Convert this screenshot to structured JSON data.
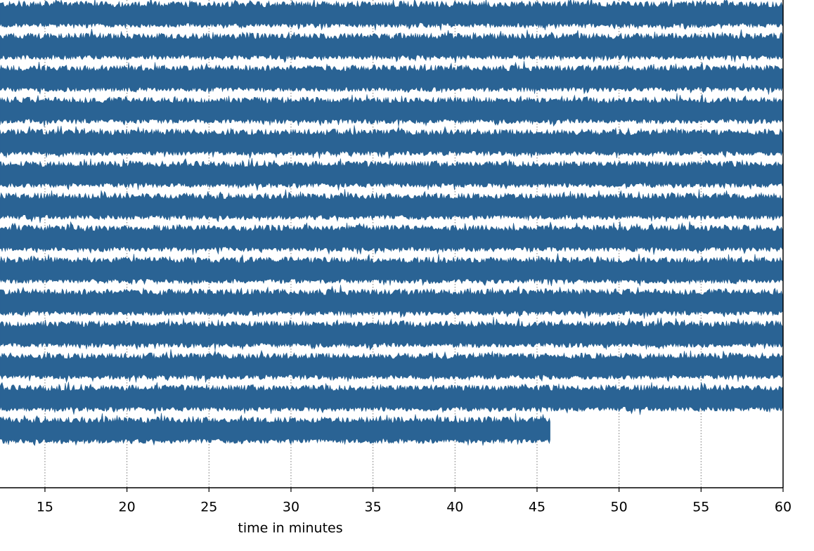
{
  "chart_data": {
    "type": "line",
    "xlabel": "time in minutes",
    "xlim": [
      12.26,
      60
    ],
    "xticks": [
      15,
      20,
      25,
      30,
      35,
      40,
      45,
      50,
      55,
      60
    ],
    "grid": true,
    "series": [
      {
        "color": "#2a6394",
        "end": 60
      },
      {
        "color": "#2a6394",
        "end": 60
      },
      {
        "color": "#2a6394",
        "end": 60
      },
      {
        "color": "#2a6394",
        "end": 60
      },
      {
        "color": "#2a6394",
        "end": 60
      },
      {
        "color": "#2a6394",
        "end": 60
      },
      {
        "color": "#2a6394",
        "end": 60
      },
      {
        "color": "#2a6394",
        "end": 60
      },
      {
        "color": "#2a6394",
        "end": 60
      },
      {
        "color": "#2a6394",
        "end": 60
      },
      {
        "color": "#2a6394",
        "end": 60
      },
      {
        "color": "#2a6394",
        "end": 60
      },
      {
        "color": "#2a6394",
        "end": 60
      },
      {
        "color": "#2a6394",
        "end": 45.8
      }
    ]
  }
}
